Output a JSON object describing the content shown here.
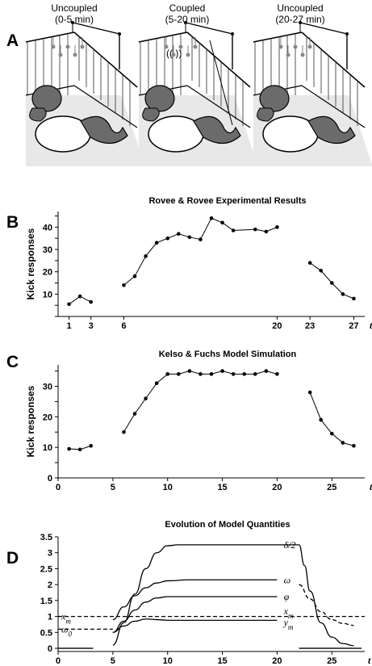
{
  "panel_a": {
    "letter": "A",
    "scenes": [
      {
        "label": "Uncoupled",
        "time": "(0-5 min)"
      },
      {
        "label": "Coupled",
        "time": "(5-20 min)"
      },
      {
        "label": "Uncoupled",
        "time": "(20-27 min)"
      }
    ]
  },
  "chart_data": [
    {
      "panel": "B",
      "type": "scatter",
      "title": "Rovee & Rovee Experimental Results",
      "ylabel": "Kick responses",
      "xlabel": "t",
      "xlim": [
        0,
        28
      ],
      "ylim": [
        0,
        47
      ],
      "xticks": [
        1,
        3,
        6,
        20,
        23,
        27
      ],
      "yticks": [
        10,
        20,
        30,
        40
      ],
      "segments": [
        {
          "x": [
            1,
            2,
            3
          ],
          "y": [
            5.5,
            9,
            6.5
          ]
        },
        {
          "x": [
            6,
            7,
            8,
            9,
            10,
            11,
            12,
            13,
            14,
            15,
            16,
            18,
            19,
            20
          ],
          "y": [
            14,
            18,
            27,
            33,
            35,
            37,
            35.5,
            34.5,
            44,
            42,
            38.5,
            39,
            38,
            40
          ]
        },
        {
          "x": [
            23,
            24,
            25,
            26,
            27
          ],
          "y": [
            24,
            20.5,
            15,
            10,
            8
          ]
        }
      ]
    },
    {
      "panel": "C",
      "type": "scatter",
      "title": "Kelso & Fuchs Model Simulation",
      "ylabel": "Kick responses",
      "xlabel": "t",
      "xlim": [
        0,
        28
      ],
      "ylim": [
        0,
        37
      ],
      "xticks": [
        0,
        5,
        10,
        15,
        20,
        25
      ],
      "yticks": [
        0,
        10,
        20,
        30
      ],
      "segments": [
        {
          "x": [
            1,
            2,
            3
          ],
          "y": [
            9.5,
            9.3,
            10.5
          ]
        },
        {
          "x": [
            6,
            7,
            8,
            9,
            10,
            11,
            12,
            13,
            14,
            15,
            16,
            17,
            18,
            19,
            20
          ],
          "y": [
            15,
            21,
            26,
            31,
            34,
            34,
            35,
            34,
            34,
            35,
            34,
            34,
            34,
            35,
            34
          ]
        },
        {
          "x": [
            23,
            24,
            25,
            26,
            27
          ],
          "y": [
            28,
            19,
            14.5,
            11.5,
            10.5
          ]
        }
      ]
    },
    {
      "panel": "D",
      "type": "line",
      "title": "Evolution of Model Quantities",
      "xlabel": "t",
      "xlim": [
        0,
        28
      ],
      "ylim": [
        -0.1,
        3.5
      ],
      "xticks": [
        0,
        5,
        10,
        15,
        20,
        25
      ],
      "yticks": [
        0,
        0.5,
        1,
        1.5,
        2,
        2.5,
        3,
        3.5
      ],
      "tick_labels_y": [
        "0",
        "0.5",
        "1",
        "1.5",
        "2",
        "2.5",
        "3",
        "3.5"
      ],
      "series": [
        {
          "name": "δ/2",
          "x": [
            5,
            6,
            7,
            8,
            9,
            10,
            11,
            13,
            20,
            22,
            22.5,
            23,
            24,
            25,
            26,
            27
          ],
          "y": [
            0.1,
            0.8,
            1.7,
            2.5,
            3.0,
            3.22,
            3.25,
            3.25,
            3.25,
            3.25,
            2.6,
            1.8,
            0.8,
            0.35,
            0.15,
            0.08
          ]
        },
        {
          "name": "ω",
          "x": [
            5,
            6,
            7,
            8,
            9,
            10,
            12,
            20
          ],
          "y": [
            0.9,
            1.3,
            1.65,
            1.9,
            2.05,
            2.12,
            2.15,
            2.15
          ]
        },
        {
          "name": "φ",
          "x": [
            5,
            6,
            7,
            8,
            9,
            10,
            12,
            20
          ],
          "y": [
            0.5,
            0.85,
            1.2,
            1.45,
            1.58,
            1.62,
            1.62,
            1.62
          ]
        },
        {
          "name": "y_m",
          "x": [
            5,
            6,
            7,
            8,
            9,
            10,
            12,
            20
          ],
          "y": [
            0.5,
            0.7,
            0.85,
            0.92,
            0.9,
            0.88,
            0.88,
            0.88
          ]
        },
        {
          "name": "x_m",
          "style": "dashed",
          "x": [
            0,
            28
          ],
          "y": [
            1.0,
            1.0
          ]
        },
        {
          "name": "ω_0",
          "style": "dashed",
          "x": [
            0,
            5
          ],
          "y": [
            0.6,
            0.6
          ]
        },
        {
          "name": "ω decay",
          "style": "dashed",
          "x": [
            22,
            23,
            24,
            25,
            26,
            27
          ],
          "y": [
            2.0,
            1.55,
            1.15,
            0.9,
            0.78,
            0.72
          ]
        },
        {
          "name": "zero",
          "x": [
            0,
            3.2
          ],
          "y": [
            0,
            0
          ]
        },
        {
          "name": "zero2",
          "x": [
            22,
            27.7
          ],
          "y": [
            0,
            0
          ]
        }
      ],
      "curve_labels": [
        {
          "text": "δ/2"
        },
        {
          "text": "ω"
        },
        {
          "text": "φ"
        },
        {
          "text": "x",
          "sub": "m"
        },
        {
          "text": "y",
          "sub": "m"
        },
        {
          "text": "x",
          "sub": "m",
          "left": true
        },
        {
          "text": "ω",
          "sub": "0",
          "left": true
        }
      ]
    }
  ]
}
